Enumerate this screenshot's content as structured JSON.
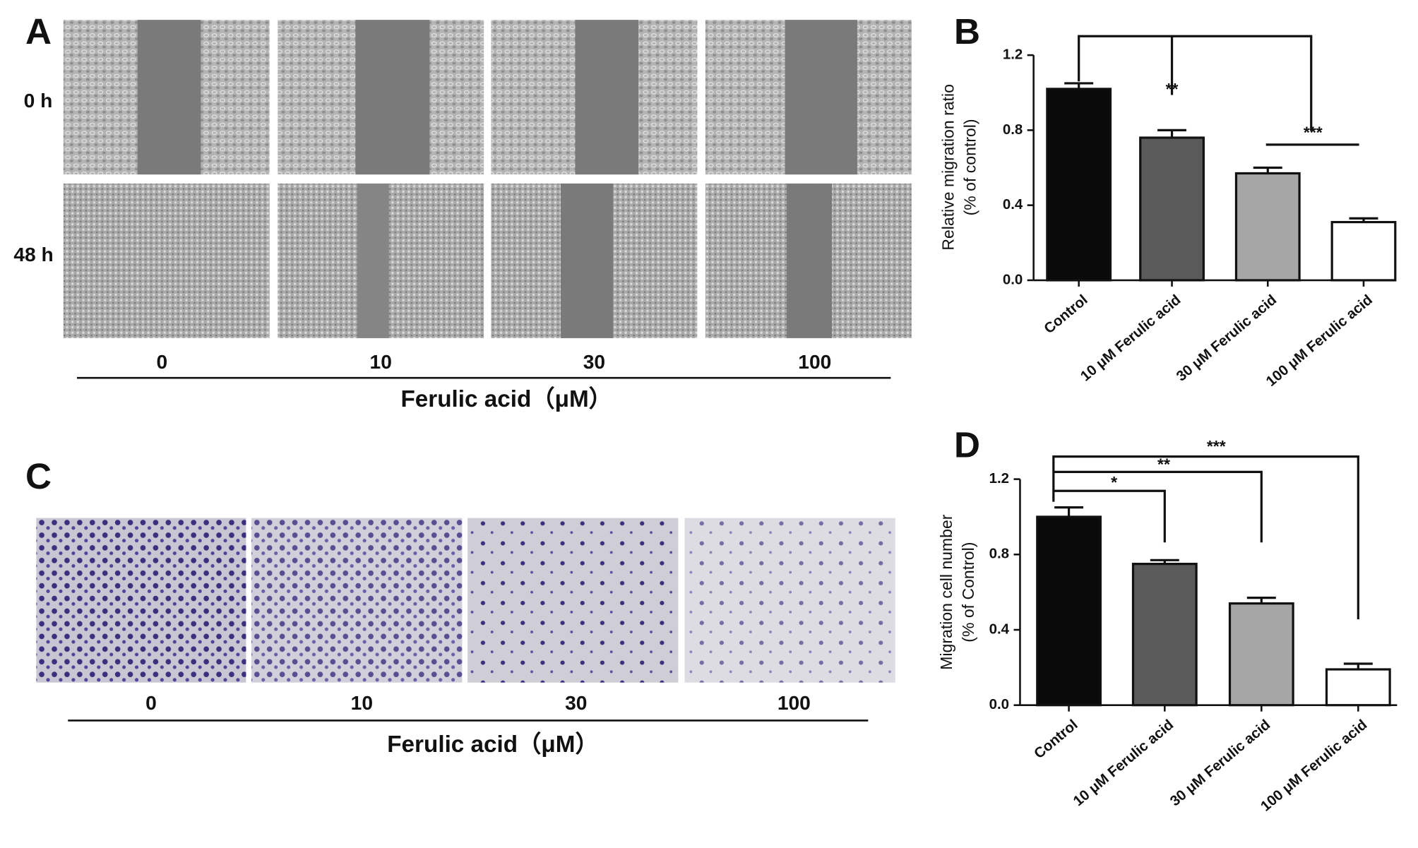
{
  "panel_a": {
    "label": "A",
    "rows": [
      "0 h",
      "48 h"
    ],
    "columns": [
      "0",
      "10",
      "30",
      "100"
    ],
    "axis_title": "Ferulic acid（μM）"
  },
  "panel_c": {
    "label": "C",
    "columns": [
      "0",
      "10",
      "30",
      "100"
    ],
    "axis_title": "Ferulic acid（μM）"
  },
  "chart_data": [
    {
      "type": "bar",
      "label": "B",
      "ylabel": [
        "Relative migration ratio",
        "(%  of control)"
      ],
      "categories": [
        "Control",
        "10 μM Ferulic acid",
        "30 μM Ferulic acid",
        "100 μM Ferulic acid"
      ],
      "values": [
        1.02,
        0.76,
        0.57,
        0.31
      ],
      "errors": [
        0.03,
        0.04,
        0.03,
        0.02
      ],
      "colors": [
        "#0a0a0a",
        "#5a5a5a",
        "#a6a6a6",
        "#ffffff"
      ],
      "ylim": [
        0,
        1.2
      ],
      "yticks": [
        {
          "value": 0,
          "label": "0.0"
        },
        0.4,
        0.8,
        1.2
      ],
      "annotations": [
        "**",
        "***"
      ]
    },
    {
      "type": "bar",
      "label": "D",
      "ylabel": [
        "Migration cell number",
        "(%  of Control)"
      ],
      "categories": [
        "Control",
        "10 μM Ferulic acid",
        "30 μM Ferulic acid",
        "100 μM Ferulic acid"
      ],
      "values": [
        1.0,
        0.75,
        0.54,
        0.19
      ],
      "errors": [
        0.05,
        0.02,
        0.03,
        0.03
      ],
      "colors": [
        "#0a0a0a",
        "#5a5a5a",
        "#a6a6a6",
        "#ffffff"
      ],
      "ylim": [
        0,
        1.2
      ],
      "yticks": [
        {
          "value": 0,
          "label": "0.0"
        },
        0.4,
        0.8,
        1.2
      ],
      "annotations": [
        "*",
        "**",
        "***"
      ]
    }
  ]
}
